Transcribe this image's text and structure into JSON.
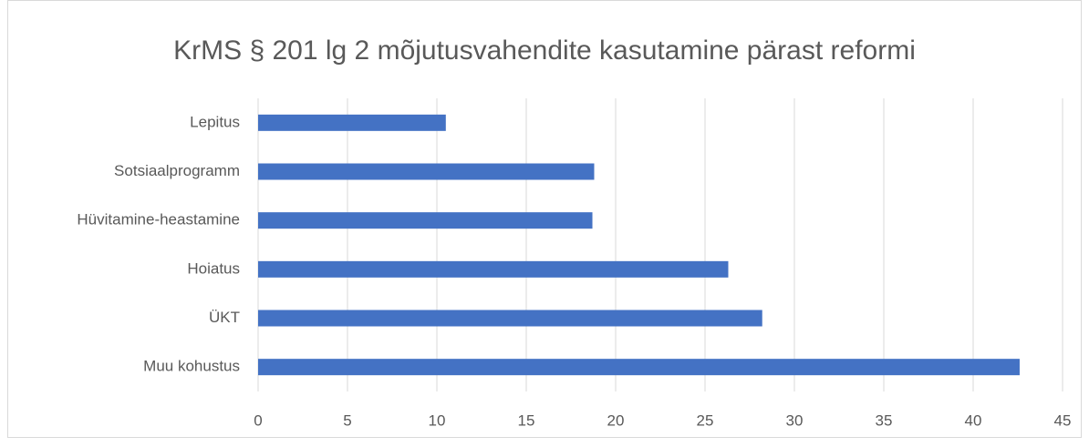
{
  "chart_data": {
    "type": "bar",
    "orientation": "horizontal",
    "title": "KrMS § 201 lg 2 mõjutusvahendite kasutamine pärast reformi",
    "categories": [
      "Lepitus",
      "Sotsiaalprogramm",
      "Hüvitamine-heastamine",
      "Hoiatus",
      "ÜKT",
      "Muu kohustus"
    ],
    "values": [
      10.5,
      18.8,
      18.7,
      26.3,
      28.2,
      42.6
    ],
    "color": "#4472c4",
    "xlim": [
      0,
      45
    ],
    "xticks": [
      0,
      5,
      10,
      15,
      20,
      25,
      30,
      35,
      40,
      45
    ],
    "grid": true
  }
}
